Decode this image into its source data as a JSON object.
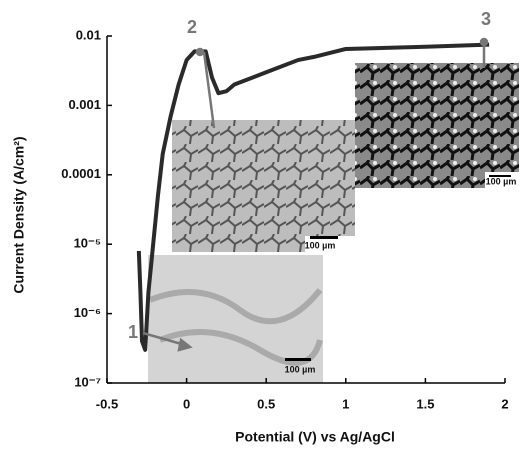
{
  "chart_data": {
    "type": "line",
    "xlabel": "Potential (V) vs Ag/AgCl",
    "ylabel": "Current Density (A/cm²)",
    "log_y": true,
    "xlim": [
      -0.5,
      2
    ],
    "xticks": [
      -0.5,
      0,
      0.5,
      1,
      1.5,
      2
    ],
    "ylim": [
      1e-07,
      0.01
    ],
    "yticks": [
      {
        "value": 1e-07,
        "label": "10⁻⁷"
      },
      {
        "value": 1e-06,
        "label": "10⁻⁶"
      },
      {
        "value": 1e-05,
        "label": "10⁻⁵"
      },
      0.0001,
      0.001,
      0.01
    ],
    "series": [
      {
        "color": "#2a2a2a",
        "x": [
          -0.3,
          -0.29,
          -0.28,
          -0.26,
          -0.24,
          -0.21,
          -0.18,
          -0.15,
          -0.1,
          -0.05,
          0,
          0.05,
          0.12,
          0.16,
          0.2,
          0.25,
          0.3,
          0.5,
          0.7,
          0.8,
          1.0,
          1.5,
          1.9
        ],
        "values": [
          8e-06,
          2e-06,
          4e-07,
          3e-07,
          2e-06,
          1e-05,
          5e-05,
          0.0002,
          0.0007,
          0.002,
          0.0045,
          0.006,
          0.006,
          0.0025,
          0.0015,
          0.0016,
          0.002,
          0.003,
          0.0045,
          0.005,
          0.0065,
          0.007,
          0.0075
        ]
      }
    ],
    "annotations": [
      "1",
      "2",
      "3"
    ],
    "inset_scale_labels": [
      "100 µm",
      "100 µm",
      "100 µm"
    ]
  }
}
